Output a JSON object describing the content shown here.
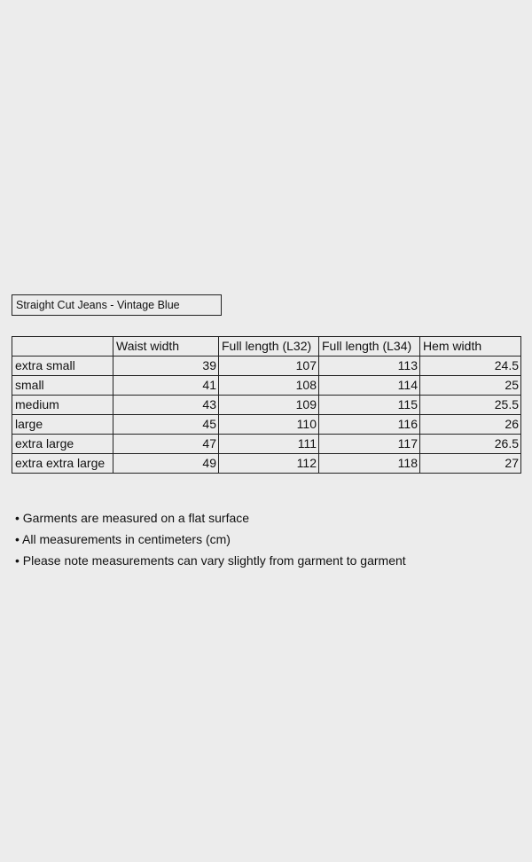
{
  "title": "Straight Cut Jeans - Vintage Blue",
  "table": {
    "headers": [
      "",
      "Waist width",
      "Full length (L32)",
      "Full length (L34)",
      "Hem width"
    ],
    "rows": [
      {
        "size": "extra small",
        "values": [
          "39",
          "107",
          "113",
          "24.5"
        ]
      },
      {
        "size": "small",
        "values": [
          "41",
          "108",
          "114",
          "25"
        ]
      },
      {
        "size": "medium",
        "values": [
          "43",
          "109",
          "115",
          "25.5"
        ]
      },
      {
        "size": "large",
        "values": [
          "45",
          "110",
          "116",
          "26"
        ]
      },
      {
        "size": "extra large",
        "values": [
          "47",
          "111",
          "117",
          "26.5"
        ]
      },
      {
        "size": "extra extra large",
        "values": [
          "49",
          "112",
          "118",
          "27"
        ]
      }
    ]
  },
  "notes": [
    "• Garments are measured on a flat surface",
    "• All measurements in centimeters (cm)",
    "• Please note measurements can vary slightly from garment to garment"
  ]
}
